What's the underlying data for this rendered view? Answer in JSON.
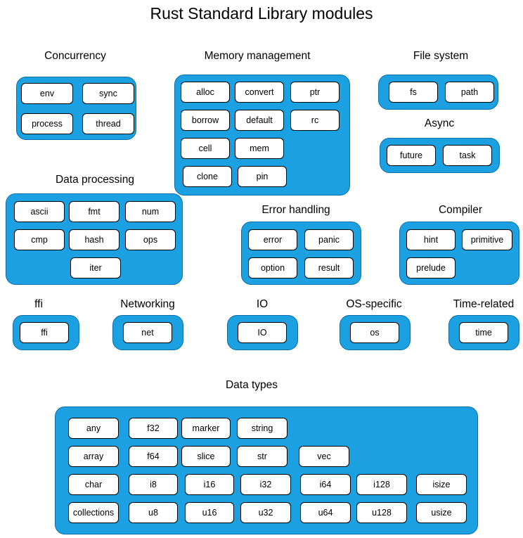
{
  "title": "Rust Standard Library modules",
  "groups": {
    "concurrency": {
      "label": "Concurrency",
      "modules": [
        "env",
        "sync",
        "process",
        "thread"
      ]
    },
    "memory": {
      "label": "Memory management",
      "modules": [
        "alloc",
        "convert",
        "ptr",
        "borrow",
        "default",
        "rc",
        "cell",
        "mem",
        "clone",
        "pin"
      ]
    },
    "filesystem": {
      "label": "File system",
      "modules": [
        "fs",
        "path"
      ]
    },
    "async": {
      "label": "Async",
      "modules": [
        "future",
        "task"
      ]
    },
    "dataproc": {
      "label": "Data processing",
      "modules": [
        "ascii",
        "fmt",
        "num",
        "cmp",
        "hash",
        "ops",
        "iter"
      ]
    },
    "error": {
      "label": "Error handling",
      "modules": [
        "error",
        "panic",
        "option",
        "result"
      ]
    },
    "compiler": {
      "label": "Compiler",
      "modules": [
        "hint",
        "primitive",
        "prelude"
      ]
    },
    "ffi": {
      "label": "ffi",
      "modules": [
        "ffi"
      ]
    },
    "networking": {
      "label": "Networking",
      "modules": [
        "net"
      ]
    },
    "io": {
      "label": "IO",
      "modules": [
        "IO"
      ]
    },
    "os": {
      "label": "OS-specific",
      "modules": [
        "os"
      ]
    },
    "time": {
      "label": "Time-related",
      "modules": [
        "time"
      ]
    },
    "datatypes": {
      "label": "Data types",
      "modules": [
        "any",
        "f32",
        "marker",
        "string",
        "array",
        "f64",
        "slice",
        "str",
        "vec",
        "char",
        "i8",
        "i16",
        "i32",
        "i64",
        "i128",
        "isize",
        "collections",
        "u8",
        "u16",
        "u32",
        "u64",
        "u128",
        "usize"
      ]
    }
  },
  "colors": {
    "group_fill": "#1ba1e2",
    "module_fill": "#ffffff"
  }
}
